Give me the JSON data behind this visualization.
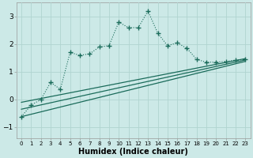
{
  "xlabel": "Humidex (Indice chaleur)",
  "bg_color": "#cce9e7",
  "grid_color": "#b0d4d0",
  "line_color": "#1a6b5a",
  "x_ticks": [
    0,
    1,
    2,
    3,
    4,
    5,
    6,
    7,
    8,
    9,
    10,
    11,
    12,
    13,
    14,
    15,
    16,
    17,
    18,
    19,
    20,
    21,
    22,
    23
  ],
  "ylim": [
    -1.4,
    3.5
  ],
  "xlim": [
    -0.5,
    23.5
  ],
  "line1_start": -0.62,
  "line1_end": 1.38,
  "line2_start": -0.35,
  "line2_end": 1.43,
  "line3_start": -0.1,
  "line3_end": 1.48,
  "dot_x": [
    0,
    1,
    2,
    3,
    4,
    5,
    6,
    7,
    8,
    9,
    10,
    11,
    12,
    13,
    14,
    15,
    16,
    17,
    18,
    19,
    20,
    21,
    22,
    23
  ],
  "dot_y": [
    -0.62,
    -0.2,
    0.0,
    0.62,
    0.37,
    1.7,
    1.6,
    1.65,
    1.9,
    1.95,
    2.8,
    2.6,
    2.6,
    3.2,
    2.4,
    1.95,
    2.05,
    1.85,
    1.45,
    1.35,
    1.35,
    1.38,
    1.42,
    1.45
  ],
  "yticks": [
    -1,
    0,
    1,
    2,
    3
  ]
}
